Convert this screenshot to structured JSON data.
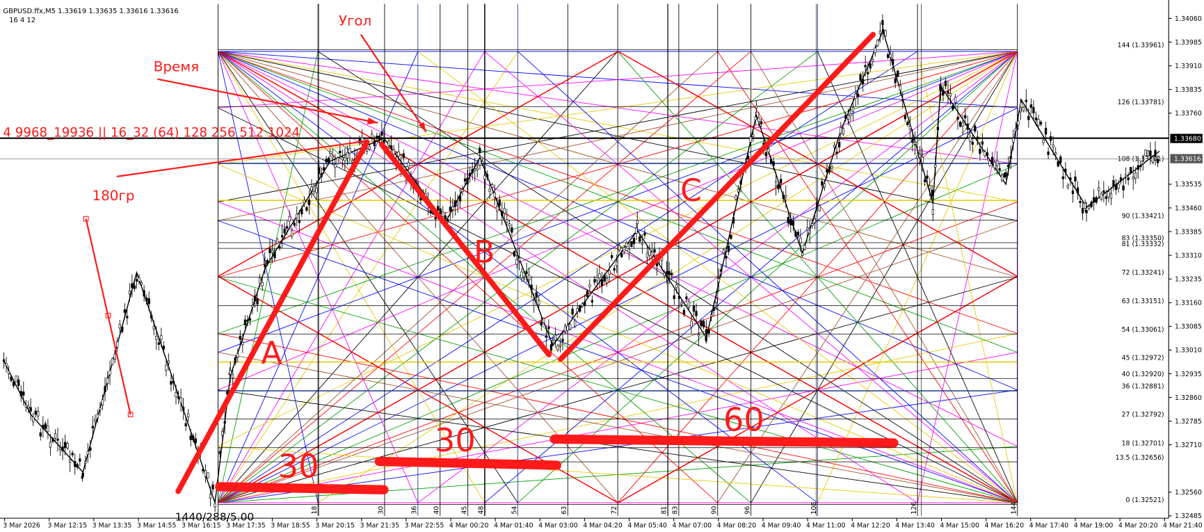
{
  "header": {
    "symbol": "GBPUSD.ffx,M5  1.33619 1.33635 1.33616 1.33616",
    "indicator": "16  4  12"
  },
  "price_axis": {
    "labels": [
      "1.34060",
      "1.33985",
      "1.33910",
      "1.33835",
      "1.33760",
      "1.33535",
      "1.33460",
      "1.33385",
      "1.33310",
      "1.33235",
      "1.33160",
      "1.33085",
      "1.33010",
      "1.32935",
      "1.32860",
      "1.32785",
      "1.32710",
      "1.32560",
      "1.32485"
    ],
    "current_labels": [
      "1.33680",
      "1.33616"
    ]
  },
  "levels": [
    "144 (1.33961)",
    "126 (1.33781)",
    "108 (1.33601)",
    "90 (1.33421)",
    "83 (1.33350)",
    "81 (1.33332)",
    "72 (1.33241)",
    "63 (1.33151)",
    "54 (1.33061)",
    "45 (1.32972)",
    "40 (1.32920)",
    "36 (1.32881)",
    "27 (1.32792)",
    "18 (1.32701)",
    "13.5 (1.32656)",
    "0 (1.32521)"
  ],
  "bottom_numbers": [
    "18",
    "30",
    "36",
    "40",
    "45",
    "48",
    "54",
    "63",
    "72",
    "81",
    "83",
    "90",
    "96",
    "108",
    "126",
    "144"
  ],
  "time_axis": [
    "3 Mar 2026",
    "3 Mar 12:15",
    "3 Mar 13:35",
    "3 Mar 14:55",
    "3 Mar 16:15",
    "3 Mar 17:35",
    "3 Mar 18:55",
    "3 Mar 20:15",
    "3 Mar 21:35",
    "3 Mar 22:55",
    "4 Mar 00:20",
    "4 Mar 01:40",
    "4 Mar 03:00",
    "4 Mar 04:20",
    "4 Mar 05:40",
    "4 Mar 07:00",
    "4 Mar 08:20",
    "4 Mar 09:40",
    "4 Mar 11:00",
    "4 Mar 12:20",
    "4 Mar 13:40",
    "4 Mar 15:00",
    "4 Mar 16:20",
    "4 Mar 17:40",
    "4 Mar 19:00",
    "4 Mar 20:20",
    "4 Mar 21:40"
  ],
  "annotations": {
    "angle": "Угол",
    "time": "Время",
    "series": "4 9968_19936 || 16_32 (64) 128 256 512 1024",
    "degrees": "180гр",
    "wave_a": "A",
    "wave_b": "B",
    "wave_c": "C",
    "span_1": "30",
    "span_2": "30",
    "span_3": "60",
    "footer": "1440/288/5.00"
  }
}
